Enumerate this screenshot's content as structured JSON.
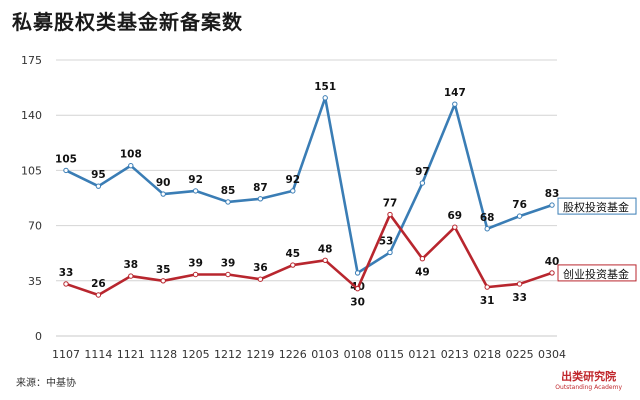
{
  "header": {
    "title": "私募股权类基金新备案数"
  },
  "footer": {
    "source": "来源：中基协",
    "brand_cn": "出类研究院",
    "brand_en": "Outstanding Academy"
  },
  "chart_data": {
    "type": "line",
    "title": "私募股权类基金新备案数",
    "categories": [
      "1107",
      "1114",
      "1121",
      "1128",
      "1205",
      "1212",
      "1219",
      "1226",
      "0103",
      "0108",
      "0115",
      "0121",
      "0213",
      "0218",
      "0225",
      "0304"
    ],
    "ylim": [
      0,
      175
    ],
    "yticks": [
      0,
      35,
      70,
      105,
      140,
      175
    ],
    "grid": true,
    "series": [
      {
        "name": "股权投资基金",
        "color": "#3a7db5",
        "values": [
          105,
          95,
          108,
          90,
          92,
          85,
          87,
          92,
          151,
          40,
          53,
          97,
          147,
          68,
          76,
          83
        ]
      },
      {
        "name": "创业投资基金",
        "color": "#b8262e",
        "values": [
          33,
          26,
          38,
          35,
          39,
          39,
          36,
          45,
          48,
          30,
          77,
          49,
          69,
          31,
          33,
          40
        ]
      }
    ]
  }
}
